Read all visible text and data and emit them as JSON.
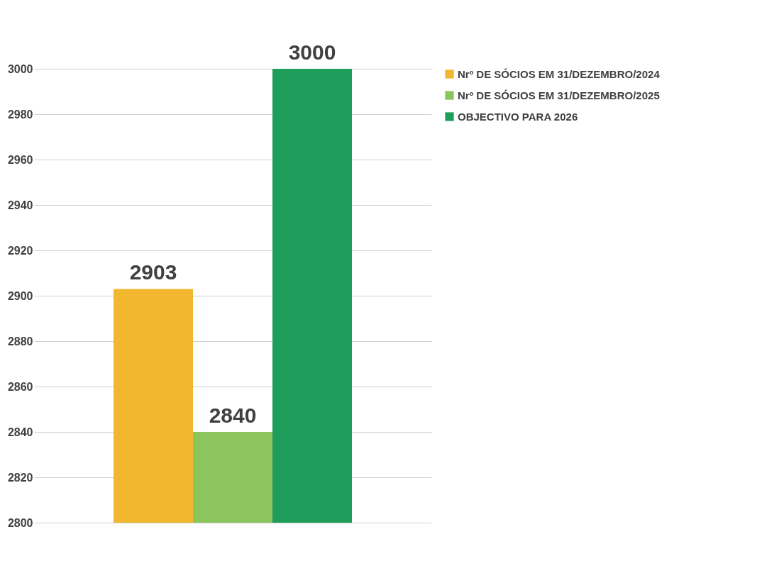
{
  "chart_data": {
    "type": "bar",
    "categories": [
      null
    ],
    "series": [
      {
        "name": "Nrº DE SÓCIOS EM 31/DEZEMBRO/2024",
        "color": "#f0b72f",
        "values": [
          2903
        ]
      },
      {
        "name": "Nrº DE SÓCIOS EM 31/DEZEMBRO/2025",
        "color": "#8cc55e",
        "values": [
          2840
        ]
      },
      {
        "name": "OBJECTIVO PARA 2026",
        "color": "#1f9d5b",
        "values": [
          3000
        ]
      }
    ],
    "ylim": [
      2800,
      3000
    ],
    "yticks": [
      2800,
      2820,
      2840,
      2860,
      2880,
      2900,
      2920,
      2940,
      2960,
      2980,
      3000
    ],
    "grid": "y",
    "legend": "right",
    "data_labels": true
  }
}
